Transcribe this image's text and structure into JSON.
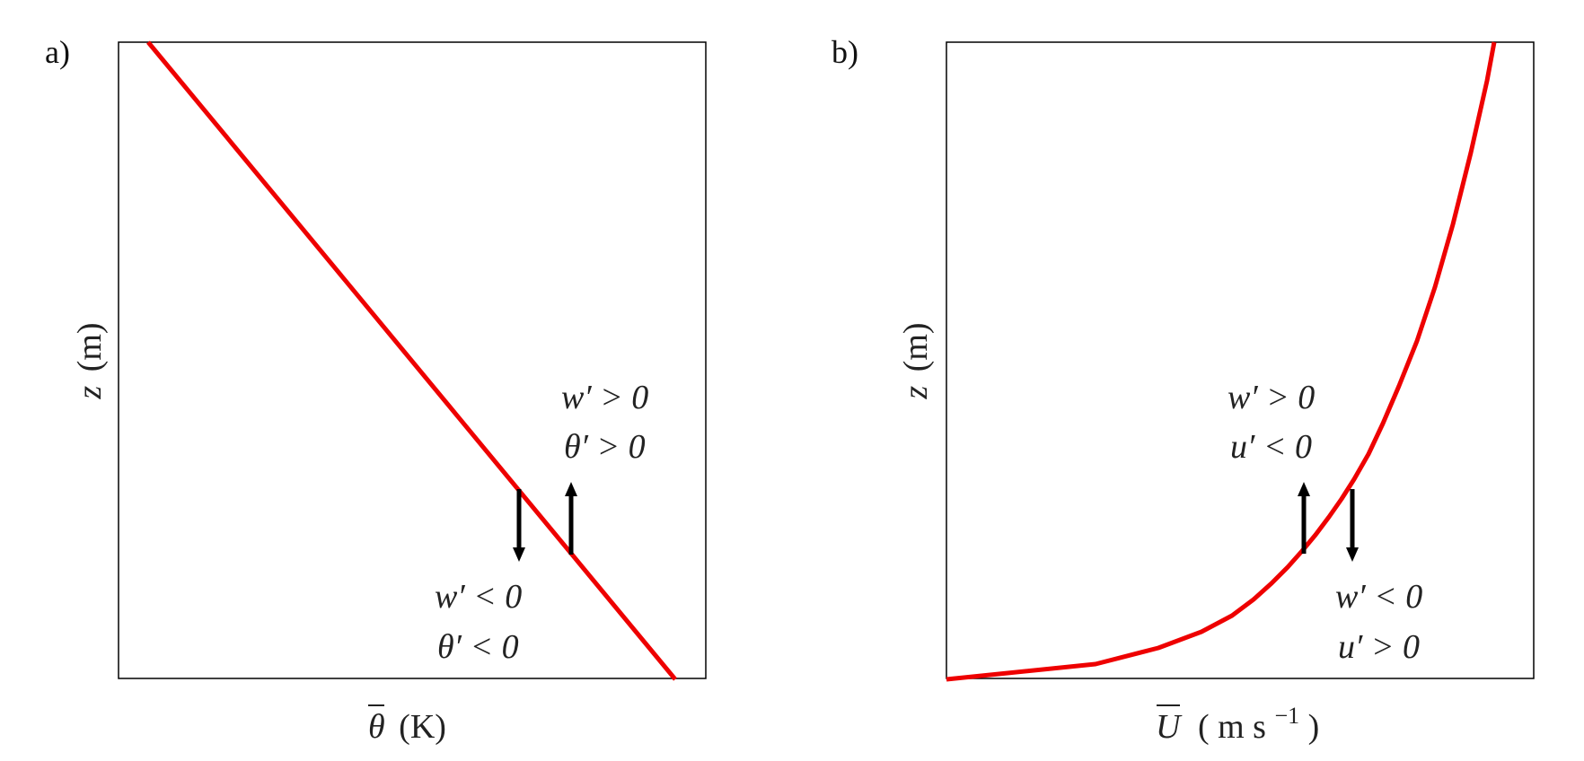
{
  "panels": [
    {
      "letter": "a)",
      "xlabel_symbol": "θ",
      "xlabel_unit": "(K)",
      "ylabel_symbol": "z",
      "ylabel_unit": "(m)",
      "upper_annotation": {
        "w": "w′ > 0",
        "var": "θ′ > 0"
      },
      "lower_annotation": {
        "w": "w′ < 0",
        "var": "θ′ < 0"
      },
      "profile_color": "#ee0000"
    },
    {
      "letter": "b)",
      "xlabel_symbol": "U",
      "xlabel_unit_open": "(",
      "xlabel_unit_m": "m s",
      "xlabel_unit_exp": "−1",
      "xlabel_unit_close": ")",
      "ylabel_symbol": "z",
      "ylabel_unit": "(m)",
      "upper_annotation": {
        "w": "w′ > 0",
        "var": "u′ < 0"
      },
      "lower_annotation": {
        "w": "w′ < 0",
        "var": "u′ > 0"
      },
      "profile_color": "#ee0000"
    }
  ]
}
